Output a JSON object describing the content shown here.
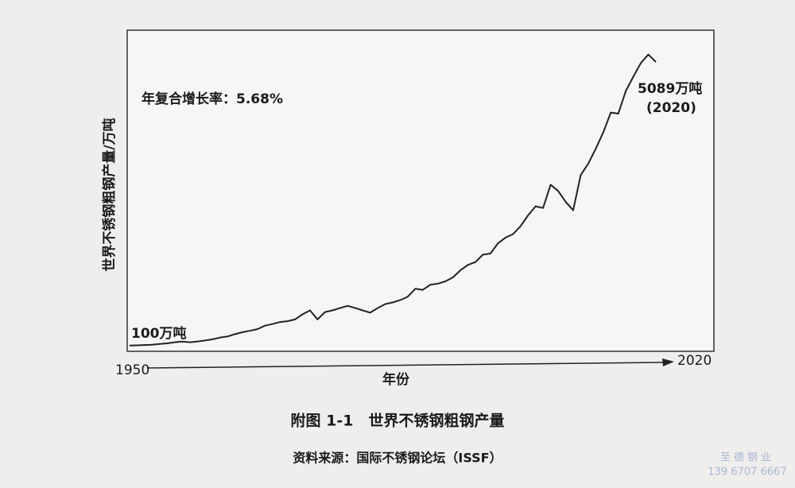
{
  "chart_data": {
    "type": "line",
    "y_label": "世界不锈钢粗钢产量/万吨",
    "x_label": "年份",
    "annotations": [
      "年复合增长率：5.68%",
      "100万吨",
      "5089万吨",
      "(2020)"
    ],
    "x": [
      1950,
      1951,
      1952,
      1953,
      1954,
      1955,
      1956,
      1957,
      1958,
      1959,
      1960,
      1961,
      1962,
      1963,
      1964,
      1965,
      1966,
      1967,
      1968,
      1969,
      1970,
      1971,
      1972,
      1973,
      1974,
      1975,
      1976,
      1977,
      1978,
      1979,
      1980,
      1981,
      1982,
      1983,
      1984,
      1985,
      1986,
      1987,
      1988,
      1989,
      1990,
      1991,
      1992,
      1993,
      1994,
      1995,
      1996,
      1997,
      1998,
      1999,
      2000,
      2001,
      2002,
      2003,
      2004,
      2005,
      2006,
      2007,
      2008,
      2009,
      2010,
      2011,
      2012,
      2013,
      2014,
      2015,
      2016,
      2017,
      2018,
      2019,
      2020
    ],
    "values": [
      100,
      105,
      110,
      115,
      130,
      140,
      160,
      170,
      160,
      170,
      190,
      210,
      240,
      260,
      300,
      335,
      360,
      390,
      450,
      480,
      515,
      530,
      560,
      650,
      720,
      560,
      690,
      720,
      760,
      800,
      760,
      720,
      680,
      760,
      830,
      860,
      900,
      960,
      1100,
      1080,
      1170,
      1190,
      1230,
      1300,
      1425,
      1520,
      1570,
      1700,
      1720,
      1900,
      2000,
      2060,
      2200,
      2390,
      2550,
      2520,
      2930,
      2820,
      2630,
      2480,
      3100,
      3300,
      3560,
      3850,
      4200,
      4180,
      4580,
      4830,
      5070,
      5220,
      5089
    ],
    "color": "#222222",
    "xlim": [
      1950,
      2020
    ],
    "xticks": [
      1950,
      2020
    ],
    "ylim": [
      0,
      5550
    ]
  },
  "caption": "附图 1-1　世界不锈钢粗钢产量",
  "source": "资料来源：国际不锈钢论坛（ISSF）",
  "watermark": [
    "至德钢业",
    "139 6707 6667"
  ]
}
